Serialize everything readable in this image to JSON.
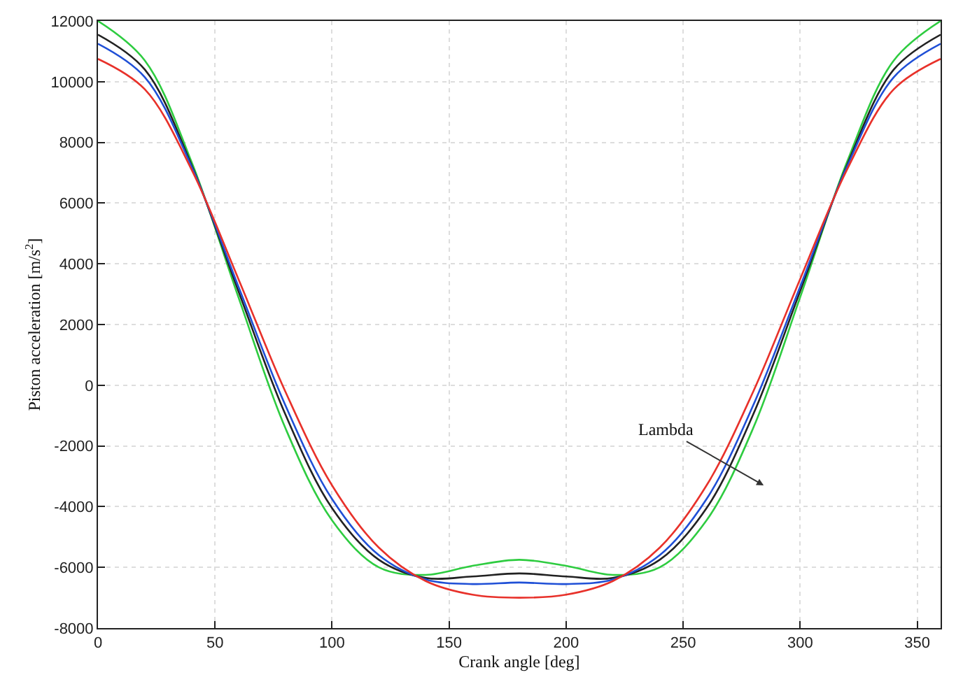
{
  "chart_data": {
    "type": "line",
    "xlabel": "Crank angle [deg]",
    "ylabel": "Piston acceleration [m/s$^{2}$]",
    "x": [
      0,
      20,
      40,
      60,
      80,
      100,
      120,
      140,
      160,
      180,
      200,
      220,
      240,
      260,
      280,
      300,
      320,
      340,
      360
    ],
    "series": [
      {
        "color": "#2ecc40",
        "values": [
          12000,
          10700,
          7350,
          2900,
          -1400,
          -4450,
          -6000,
          -6250,
          -5950,
          -5750,
          -5950,
          -6250,
          -6000,
          -4450,
          -1400,
          2900,
          7350,
          10700,
          12000
        ]
      },
      {
        "color": "#222222",
        "values": [
          11550,
          10400,
          7250,
          3100,
          -950,
          -4050,
          -5750,
          -6350,
          -6300,
          -6200,
          -6300,
          -6350,
          -5750,
          -4050,
          -950,
          3100,
          7250,
          10400,
          11550
        ]
      },
      {
        "color": "#1f4fd6",
        "values": [
          11250,
          10150,
          7200,
          3250,
          -650,
          -3750,
          -5600,
          -6400,
          -6550,
          -6500,
          -6550,
          -6400,
          -5600,
          -3750,
          -650,
          3250,
          7200,
          10150,
          11250
        ]
      },
      {
        "color": "#e8312a",
        "values": [
          10750,
          9750,
          7100,
          3500,
          -200,
          -3300,
          -5350,
          -6450,
          -6900,
          -7000,
          -6900,
          -6450,
          -5350,
          -3300,
          -200,
          3500,
          7100,
          9750,
          10750
        ]
      }
    ],
    "xlim": [
      0,
      360
    ],
    "xticks": [
      0,
      50,
      100,
      150,
      200,
      250,
      300,
      350
    ],
    "ylim": [
      -8000,
      12000
    ],
    "yticks": [
      -8000,
      -6000,
      -4000,
      -2000,
      0,
      2000,
      4000,
      6000,
      8000,
      10000,
      12000
    ],
    "grid": true,
    "legend": false,
    "annotations": [
      "Lambda"
    ]
  }
}
